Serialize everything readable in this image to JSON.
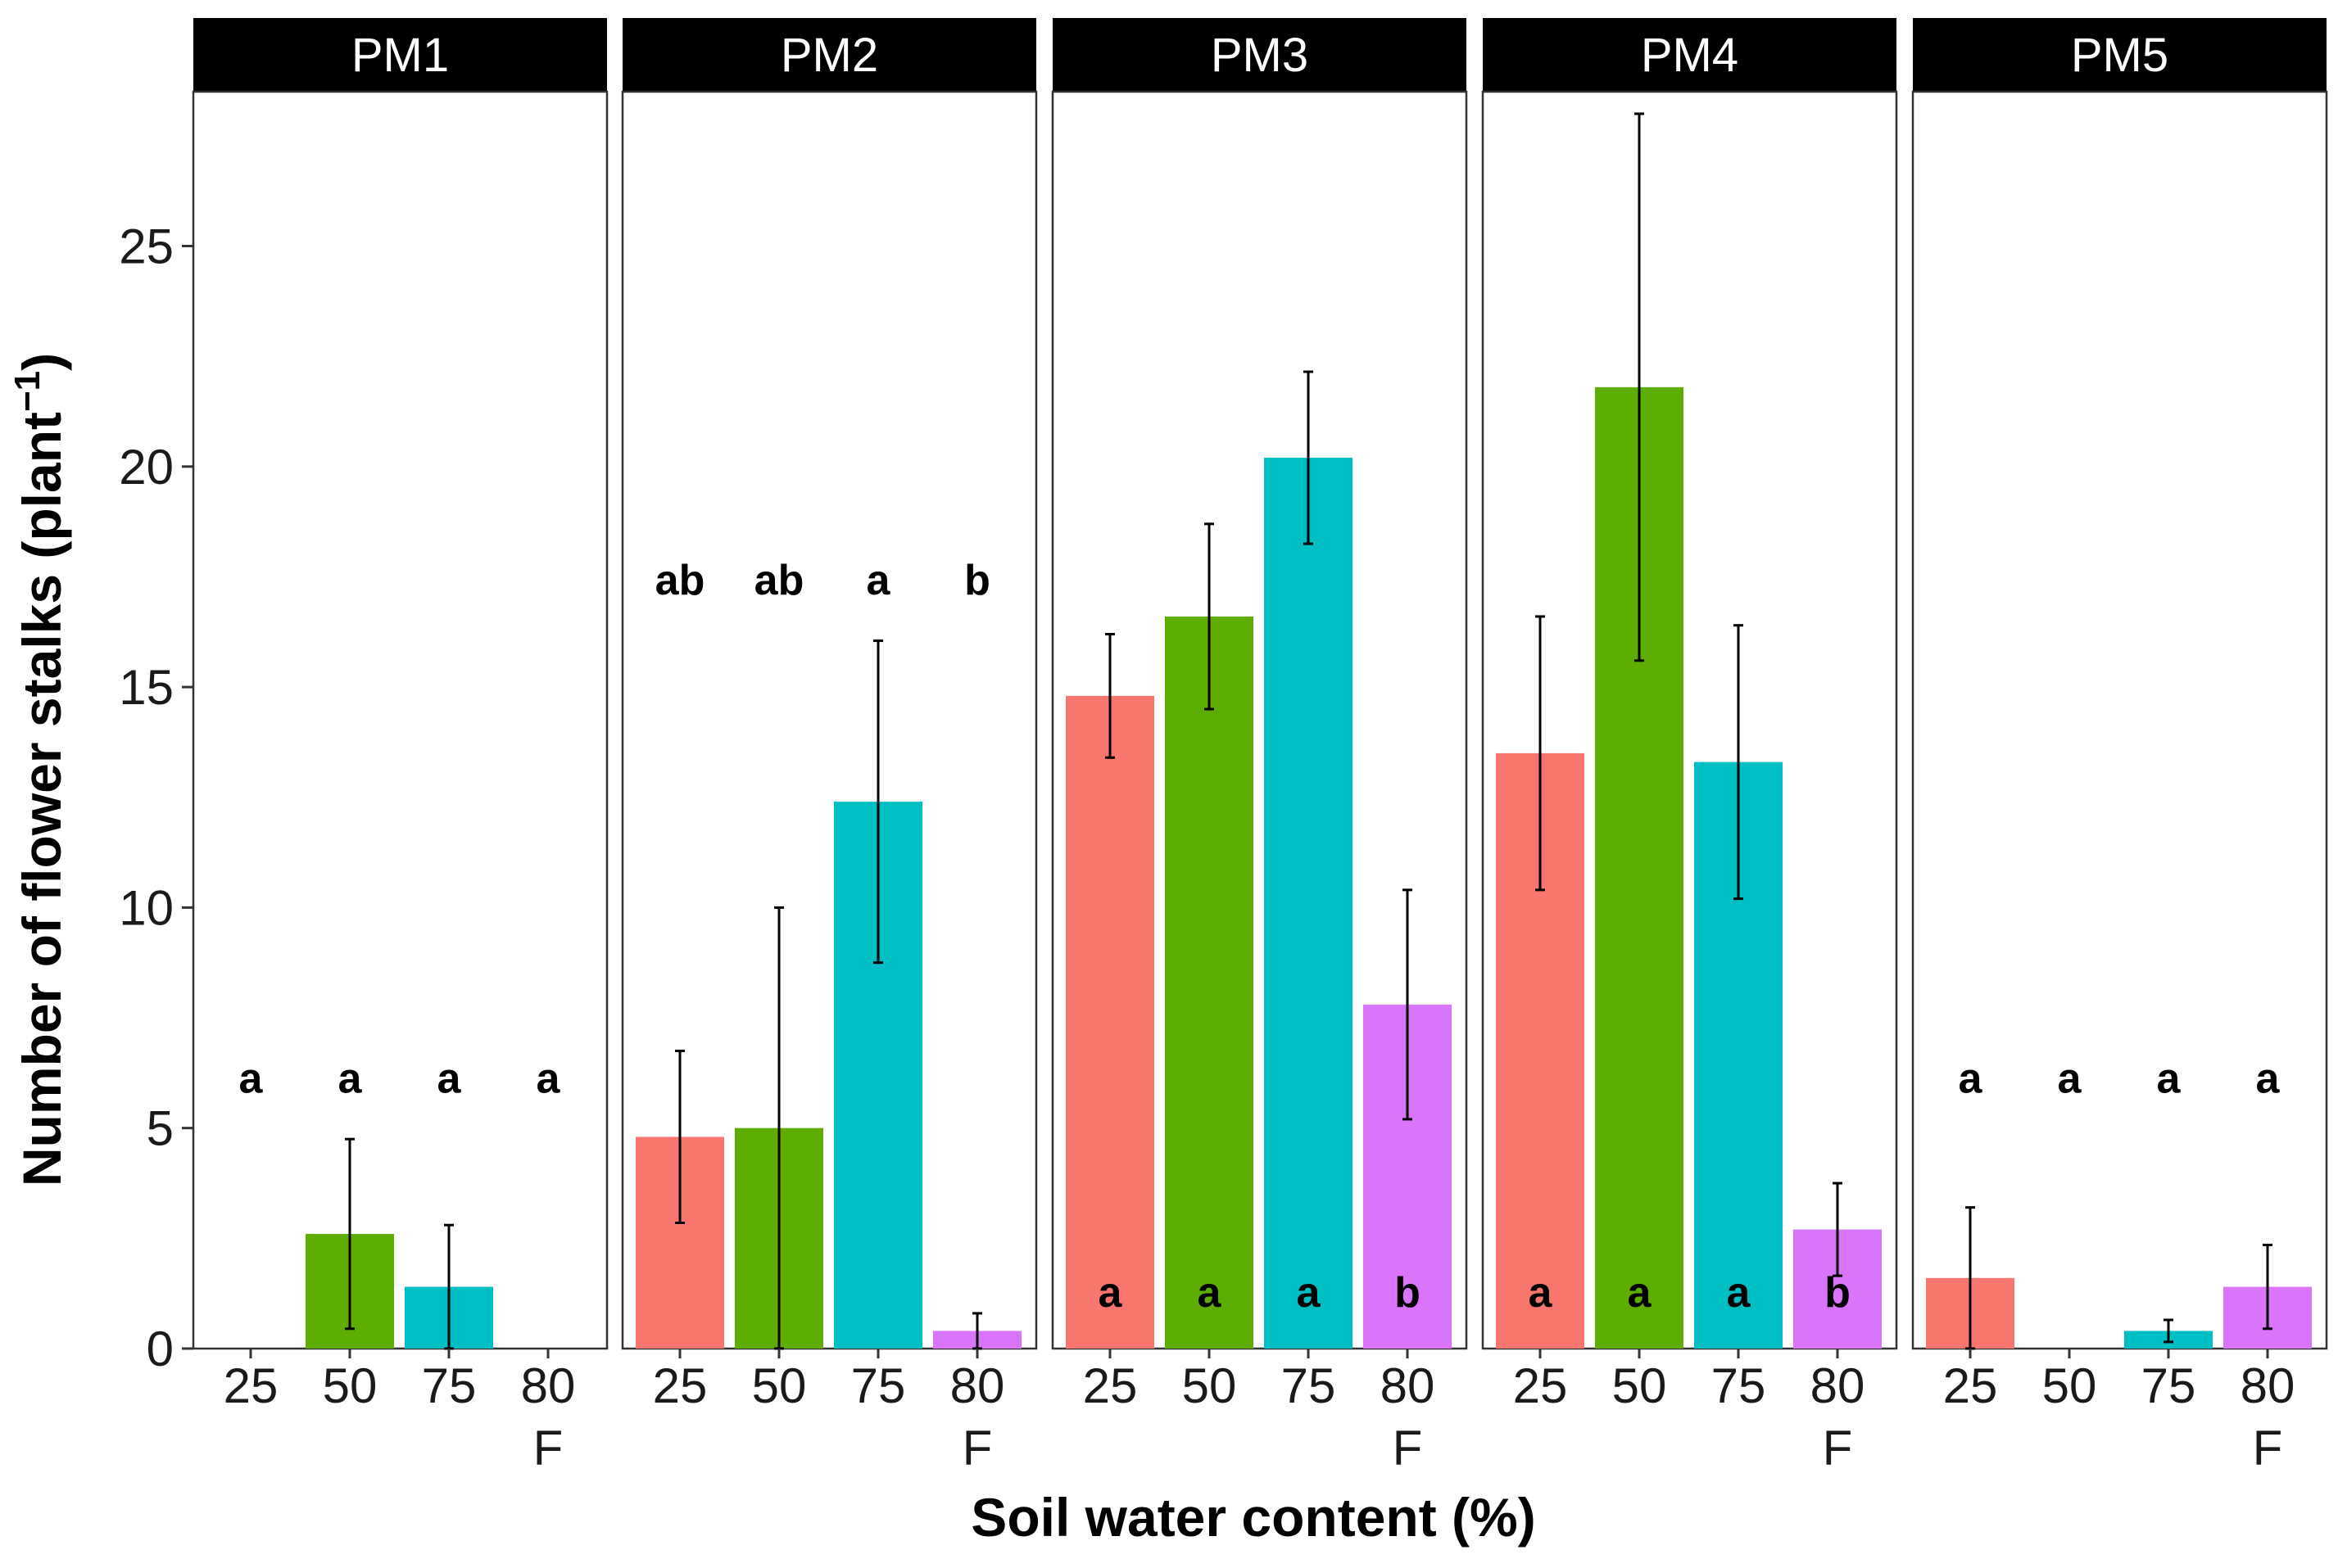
{
  "chart_data": {
    "type": "bar",
    "facet_variable": "treatment",
    "panels": [
      "PM1",
      "PM2",
      "PM3",
      "PM4",
      "PM5"
    ],
    "categories": [
      "25",
      "50",
      "75",
      "80"
    ],
    "category_sublabels": [
      "",
      "",
      "",
      "F"
    ],
    "colors": [
      "#F8766D",
      "#5DAE00",
      "#00BFC4",
      "#DA74FB"
    ],
    "ylabel": "Number of flower stalks (plant",
    "ylabel_superscript": "−1",
    "ylabel_close": ")",
    "xlabel": "Soil water content (%)",
    "ylim": [
      0,
      28.5
    ],
    "yticks": [
      0,
      5,
      10,
      15,
      20,
      25
    ],
    "grid": false,
    "series": [
      {
        "panel": "PM1",
        "values": [
          0,
          2.6,
          1.4,
          0
        ],
        "errors": [
          0,
          2.15,
          1.4,
          0
        ],
        "letters": [
          "a",
          "a",
          "a",
          "a"
        ],
        "letter_position": "top",
        "letter_y": 5.8
      },
      {
        "panel": "PM2",
        "values": [
          4.8,
          5.0,
          12.4,
          0.4
        ],
        "errors": [
          1.95,
          5.0,
          3.65,
          0.4
        ],
        "letters": [
          "ab",
          "ab",
          "a",
          "b"
        ],
        "letter_position": "top",
        "letter_y": 17.1
      },
      {
        "panel": "PM3",
        "values": [
          14.8,
          16.6,
          20.2,
          7.8
        ],
        "errors": [
          1.4,
          2.1,
          1.95,
          2.6
        ],
        "letters": [
          "a",
          "a",
          "a",
          "b"
        ],
        "letter_position": "bottom",
        "letter_y": 0.95
      },
      {
        "panel": "PM4",
        "values": [
          13.5,
          21.8,
          13.3,
          2.7
        ],
        "errors": [
          3.1,
          6.2,
          3.1,
          1.05
        ],
        "letters": [
          "a",
          "a",
          "a",
          "b"
        ],
        "letter_position": "bottom",
        "letter_y": 0.95
      },
      {
        "panel": "PM5",
        "values": [
          1.6,
          0,
          0.4,
          1.4
        ],
        "errors": [
          1.6,
          0,
          0.25,
          0.95
        ],
        "letters": [
          "a",
          "a",
          "a",
          "a"
        ],
        "letter_position": "top",
        "letter_y": 5.8
      }
    ]
  }
}
